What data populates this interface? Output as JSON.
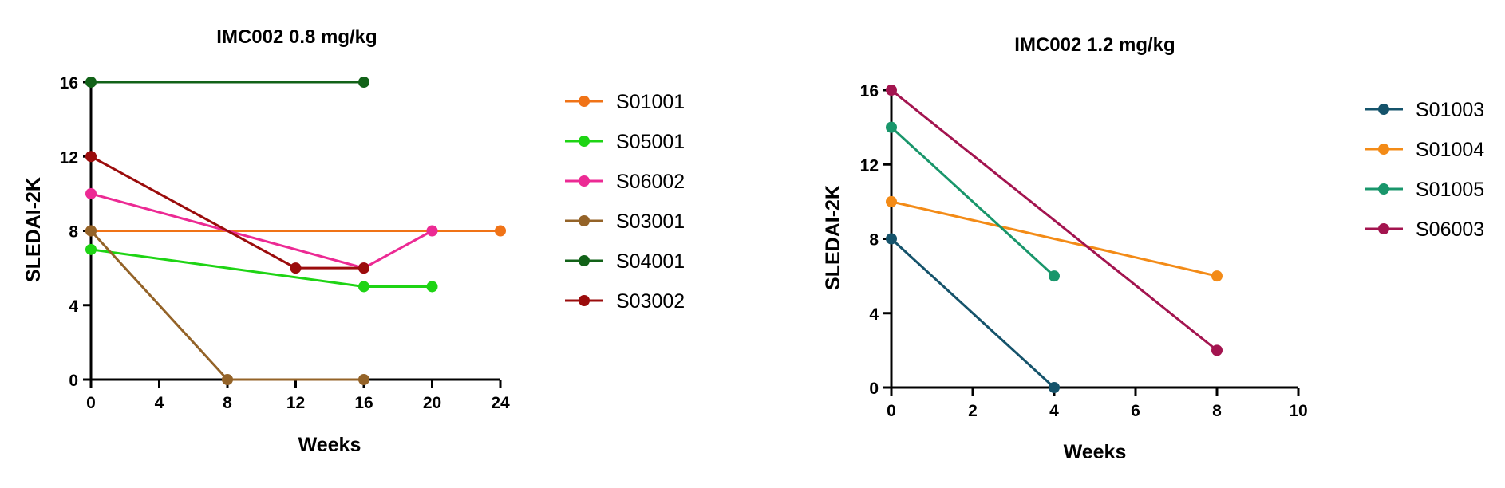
{
  "chart_data": [
    {
      "type": "line",
      "title": "IMC002 0.8 mg/kg",
      "xlabel": "Weeks",
      "ylabel": "SLEDAI-2K",
      "xlim": [
        0,
        24
      ],
      "ylim": [
        0,
        16
      ],
      "xticks": [
        0,
        4,
        8,
        12,
        16,
        20,
        24
      ],
      "yticks": [
        0,
        4,
        8,
        12,
        16
      ],
      "grid": false,
      "legend_position": "right",
      "series": [
        {
          "name": "S01001",
          "color": "#f07317",
          "points": [
            [
              0,
              8
            ],
            [
              24,
              8
            ]
          ]
        },
        {
          "name": "S05001",
          "color": "#1ed414",
          "points": [
            [
              0,
              7
            ],
            [
              16,
              5
            ],
            [
              20,
              5
            ]
          ]
        },
        {
          "name": "S06002",
          "color": "#ec2a94",
          "points": [
            [
              0,
              10
            ],
            [
              16,
              6
            ],
            [
              20,
              8
            ]
          ]
        },
        {
          "name": "S03001",
          "color": "#946328",
          "points": [
            [
              0,
              8
            ],
            [
              8,
              0
            ],
            [
              16,
              0
            ]
          ]
        },
        {
          "name": "S04001",
          "color": "#126218",
          "points": [
            [
              0,
              16
            ],
            [
              16,
              16
            ]
          ]
        },
        {
          "name": "S03002",
          "color": "#9b0c0c",
          "points": [
            [
              0,
              12
            ],
            [
              12,
              6
            ],
            [
              16,
              6
            ]
          ]
        }
      ]
    },
    {
      "type": "line",
      "title": "IMC002 1.2 mg/kg",
      "xlabel": "Weeks",
      "ylabel": "SLEDAI-2K",
      "xlim": [
        0,
        10
      ],
      "ylim": [
        0,
        16
      ],
      "xticks": [
        0,
        2,
        4,
        6,
        8,
        10
      ],
      "yticks": [
        0,
        4,
        8,
        12,
        16
      ],
      "grid": false,
      "legend_position": "right",
      "series": [
        {
          "name": "S01003",
          "color": "#15536b",
          "points": [
            [
              0,
              8
            ],
            [
              4,
              0
            ]
          ]
        },
        {
          "name": "S01004",
          "color": "#f38b17",
          "points": [
            [
              0,
              10
            ],
            [
              8,
              6
            ]
          ]
        },
        {
          "name": "S01005",
          "color": "#19966b",
          "points": [
            [
              0,
              14
            ],
            [
              4,
              6
            ]
          ]
        },
        {
          "name": "S06003",
          "color": "#a3144f",
          "points": [
            [
              0,
              16
            ],
            [
              8,
              2
            ]
          ]
        }
      ]
    }
  ]
}
